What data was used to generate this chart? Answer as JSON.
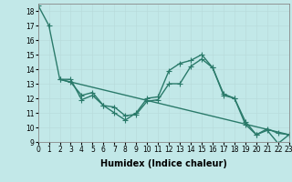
{
  "xlabel": "Humidex (Indice chaleur)",
  "bg_color": "#c2e8e8",
  "grid_color": "#d4f0f0",
  "line_color": "#2a7a6a",
  "xlim": [
    0,
    23
  ],
  "ylim": [
    9,
    18.5
  ],
  "yticks": [
    9,
    10,
    11,
    12,
    13,
    14,
    15,
    16,
    17,
    18
  ],
  "xticks": [
    0,
    1,
    2,
    3,
    4,
    5,
    6,
    7,
    8,
    9,
    10,
    11,
    12,
    13,
    14,
    15,
    16,
    17,
    18,
    19,
    20,
    21,
    22,
    23
  ],
  "line1_x": [
    0,
    1,
    2,
    3,
    4,
    5,
    6,
    7,
    8,
    9,
    10,
    11,
    12,
    13,
    14,
    15,
    16,
    17,
    18,
    19,
    20,
    21,
    22,
    23
  ],
  "line1_y": [
    18.4,
    17.0,
    13.3,
    13.3,
    11.9,
    12.2,
    11.5,
    11.0,
    10.5,
    11.0,
    12.0,
    12.1,
    13.9,
    14.4,
    14.6,
    15.0,
    14.1,
    12.3,
    12.0,
    10.2,
    9.5,
    9.9,
    9.6,
    9.5
  ],
  "line2_x": [
    2,
    3,
    4,
    5,
    6,
    7,
    8,
    9,
    10,
    11,
    12,
    13,
    14,
    15,
    16,
    17,
    18,
    19,
    20,
    21,
    22,
    23
  ],
  "line2_y": [
    13.3,
    13.1,
    12.2,
    12.4,
    11.5,
    11.4,
    10.8,
    10.9,
    11.8,
    11.9,
    13.0,
    13.0,
    14.2,
    14.7,
    14.1,
    12.2,
    12.0,
    10.4,
    9.5,
    9.8,
    8.9,
    9.5
  ],
  "line3_x": [
    2,
    23
  ],
  "line3_y": [
    13.3,
    9.5
  ],
  "marker": "+",
  "markersize": 4,
  "linewidth": 1.0,
  "xlabel_fontsize": 7,
  "tick_fontsize": 5.5
}
